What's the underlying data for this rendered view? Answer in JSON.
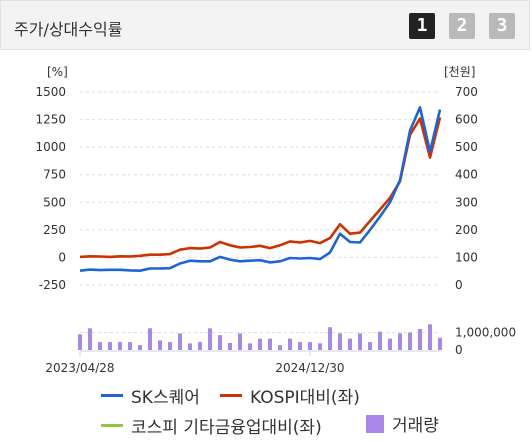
{
  "header": {
    "title": "주가/상대수익률",
    "pages": [
      {
        "label": "1",
        "active": true
      },
      {
        "label": "2",
        "active": false
      },
      {
        "label": "3",
        "active": false
      }
    ]
  },
  "chart_data": {
    "type": "line",
    "left_axis": {
      "unit_label": "[%]",
      "ticks": [
        "1500",
        "1250",
        "1000",
        "750",
        "500",
        "250",
        "0",
        "-250"
      ],
      "range": [
        -250,
        1500
      ]
    },
    "right_axis": {
      "unit_label": "[천원]",
      "ticks": [
        "700",
        "600",
        "500",
        "400",
        "300",
        "200",
        "100",
        "0"
      ],
      "range": [
        0,
        700
      ]
    },
    "volume_axis": {
      "ticks": [
        "1,000,000",
        "0"
      ],
      "range": [
        0,
        1600000
      ]
    },
    "x_labels": [
      {
        "label": "2023/04/28",
        "index": 0
      },
      {
        "label": "2024/12/30",
        "index": 23
      }
    ],
    "series": [
      {
        "name": "SK스퀘어",
        "color": "#1f64d6",
        "axis": "left",
        "values": [
          -120,
          -110,
          -115,
          -112,
          -112,
          -118,
          -120,
          -100,
          -100,
          -98,
          -55,
          -30,
          -35,
          -35,
          5,
          -20,
          -35,
          -30,
          -25,
          -45,
          -35,
          -5,
          -10,
          -5,
          -15,
          45,
          215,
          140,
          135,
          250,
          370,
          500,
          700,
          1150,
          1360,
          960,
          1340
        ]
      },
      {
        "name": "KOSPI대비(좌)",
        "color": "#cc3300",
        "axis": "left",
        "values": [
          5,
          10,
          8,
          5,
          10,
          8,
          15,
          25,
          25,
          30,
          70,
          85,
          80,
          90,
          140,
          110,
          90,
          95,
          105,
          85,
          110,
          145,
          135,
          150,
          130,
          175,
          300,
          215,
          225,
          330,
          435,
          540,
          690,
          1110,
          1260,
          905,
          1270
        ]
      },
      {
        "name": "코스피 기타금융업대비(좌)",
        "color": "#8dc63f",
        "axis": "left",
        "values": []
      }
    ],
    "volume": {
      "name": "거래량",
      "color": "#a888e8",
      "values": [
        900000,
        1240000,
        450000,
        450000,
        450000,
        450000,
        280000,
        1240000,
        550000,
        450000,
        950000,
        380000,
        450000,
        1240000,
        850000,
        400000,
        950000,
        380000,
        650000,
        650000,
        280000,
        650000,
        450000,
        450000,
        380000,
        1300000,
        950000,
        650000,
        950000,
        450000,
        1050000,
        650000,
        950000,
        1000000,
        1200000,
        1470000,
        700000
      ]
    }
  }
}
